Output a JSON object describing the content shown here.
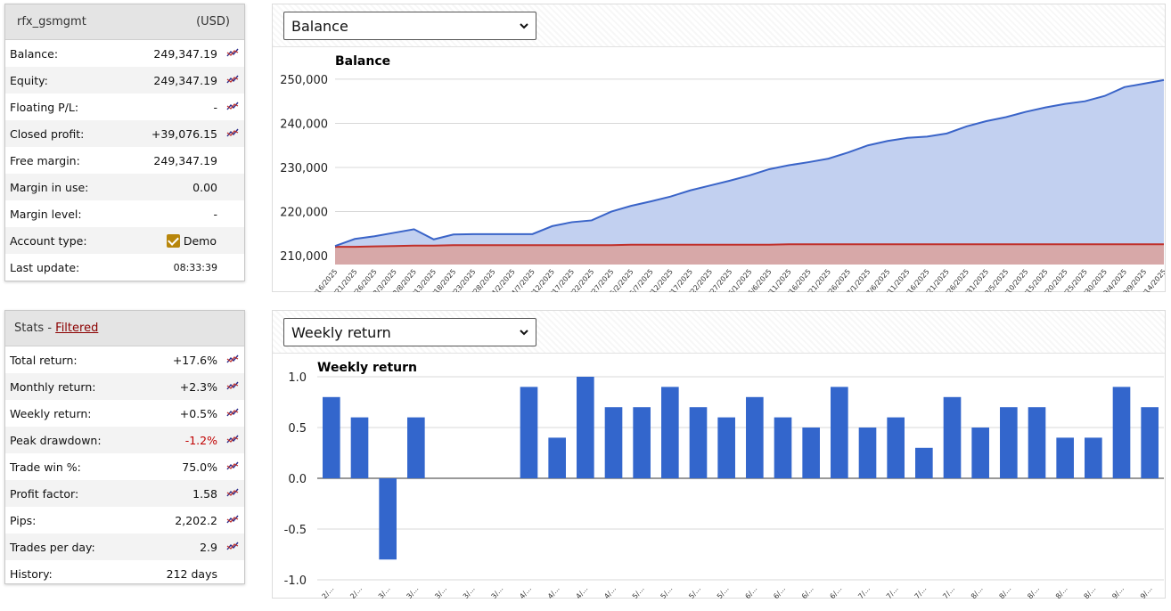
{
  "account": {
    "name": "rfx_gsmgmt",
    "currency": "(USD)",
    "rows": [
      {
        "label": "Balance:",
        "value": "249,347.19",
        "chart": true
      },
      {
        "label": "Equity:",
        "value": "249,347.19",
        "chart": true
      },
      {
        "label": "Floating P/L:",
        "value": "-",
        "chart": true
      },
      {
        "label": "Closed profit:",
        "value": "+39,076.15",
        "chart": true
      },
      {
        "label": "Free margin:",
        "value": "249,347.19",
        "chart": false
      },
      {
        "label": "Margin in use:",
        "value": "0.00",
        "chart": false
      },
      {
        "label": "Margin level:",
        "value": "-",
        "chart": false
      },
      {
        "label": "Account type:",
        "value": "Demo",
        "chart": false
      },
      {
        "label": "Last update:",
        "value": "08:33:39",
        "chart": false
      }
    ]
  },
  "stats": {
    "title": "Stats - ",
    "filter_link": "Filtered",
    "rows": [
      {
        "label": "Total return:",
        "value": "+17.6%",
        "chart": true
      },
      {
        "label": "Monthly return:",
        "value": "+2.3%",
        "chart": true
      },
      {
        "label": "Weekly return:",
        "value": "+0.5%",
        "chart": true
      },
      {
        "label": "Peak drawdown:",
        "value": "-1.2%",
        "chart": true
      },
      {
        "label": "Trade win %:",
        "value": "75.0%",
        "chart": true
      },
      {
        "label": "Profit factor:",
        "value": "1.58",
        "chart": true
      },
      {
        "label": "Pips:",
        "value": "2,202.2",
        "chart": true
      },
      {
        "label": "Trades per day:",
        "value": "2.9",
        "chart": true
      },
      {
        "label": "History:",
        "value": "212 days",
        "chart": false
      }
    ]
  },
  "balance_panel": {
    "select_value": "Balance"
  },
  "weekly_panel": {
    "select_value": "Weekly return"
  },
  "chart_data": [
    {
      "type": "area",
      "title": "Balance",
      "xlabel": "",
      "ylabel": "",
      "ylim": [
        208000,
        252000
      ],
      "yticks": [
        "210,000",
        "220,000",
        "230,000",
        "240,000",
        "250,000"
      ],
      "ytick_values": [
        210000,
        220000,
        230000,
        240000,
        250000
      ],
      "categories": [
        "2/16/2025",
        "2/21/2025",
        "2/26/2025",
        "3/3/2025",
        "3/8/2025",
        "3/13/2025",
        "3/18/2025",
        "3/23/2025",
        "3/28/2025",
        "4/2/2025",
        "4/7/2025",
        "4/12/2025",
        "4/17/2025",
        "4/22/2025",
        "4/27/2025",
        "5/2/2025",
        "5/7/2025",
        "5/12/2025",
        "5/17/2025",
        "5/22/2025",
        "5/27/2025",
        "6/1/2025",
        "6/6/2025",
        "6/11/2025",
        "6/16/2025",
        "6/21/2025",
        "6/26/2025",
        "7/1/2025",
        "7/6/2025",
        "7/11/2025",
        "7/16/2025",
        "7/21/2025",
        "7/26/2025",
        "7/31/2025",
        "8/5/2025",
        "8/10/2025",
        "8/15/2025",
        "8/20/2025",
        "8/25/2025",
        "8/30/2025",
        "9/4/2025",
        "9/9/2025",
        "9/14/2025"
      ],
      "series": [
        {
          "color": "#3a64c8",
          "values": [
            212200,
            213800,
            214400,
            215200,
            216000,
            213700,
            214800,
            214900,
            214900,
            214900,
            214900,
            216700,
            217600,
            218000,
            220000,
            221300,
            222300,
            223400,
            224800,
            225900,
            227000,
            228200,
            229600,
            230500,
            231200,
            232000,
            233400,
            235000,
            236000,
            236700,
            237000,
            237700,
            239300,
            240500,
            241400,
            242600,
            243600,
            244400,
            245000,
            246200,
            248200,
            249000,
            249800
          ]
        },
        {
          "color": "#c0302b",
          "values": [
            212000,
            212000,
            212100,
            212200,
            212300,
            212300,
            212400,
            212400,
            212400,
            212400,
            212400,
            212400,
            212400,
            212400,
            212400,
            212500,
            212500,
            212500,
            212500,
            212500,
            212500,
            212500,
            212500,
            212600,
            212600,
            212600,
            212600,
            212600,
            212600,
            212600,
            212600,
            212600,
            212600,
            212600,
            212600,
            212600,
            212600,
            212600,
            212600,
            212600,
            212600,
            212600,
            212600
          ]
        }
      ]
    },
    {
      "type": "bar",
      "title": "Weekly return",
      "xlabel": "",
      "ylabel": "",
      "ylim": [
        -1.0,
        1.0
      ],
      "yticks": [
        "-1.0",
        "-0.5",
        "0.0",
        "0.5",
        "1.0"
      ],
      "ytick_values": [
        -1.0,
        -0.5,
        0.0,
        0.5,
        1.0
      ],
      "categories": [
        "2/...",
        "2/...",
        "3/...",
        "3/...",
        "3/...",
        "3/...",
        "3/...",
        "4/...",
        "4/...",
        "4/...",
        "4/...",
        "5/...",
        "5/...",
        "5/...",
        "5/...",
        "6/...",
        "6/...",
        "6/...",
        "6/...",
        "7/...",
        "7/...",
        "7/...",
        "7/...",
        "8/...",
        "8/...",
        "8/...",
        "8/...",
        "8/...",
        "9/...",
        "9/..."
      ],
      "values": [
        0.8,
        0.6,
        -0.8,
        0.6,
        0,
        0,
        0,
        0.9,
        0.4,
        1.0,
        0.7,
        0.7,
        0.9,
        0.7,
        0.6,
        0.8,
        0.6,
        0.5,
        0.9,
        0.5,
        0.6,
        0.3,
        0.8,
        0.5,
        0.7,
        0.7,
        0.4,
        0.4,
        0.9,
        0.7
      ],
      "color": "#3366cc"
    }
  ]
}
